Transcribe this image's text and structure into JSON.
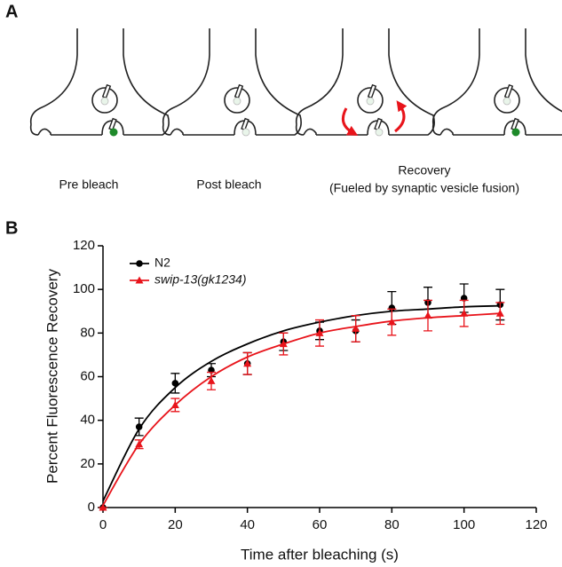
{
  "panel_a": {
    "label": "A",
    "captions": [
      "Pre bleach",
      "Post bleach",
      [
        "Recovery",
        "(Fueled by synaptic vesicle fusion)"
      ]
    ]
  },
  "chart_data": {
    "type": "line",
    "panel_label": "B",
    "xlabel": "Time after bleaching (s)",
    "ylabel": "Percent Fluorescence Recovery",
    "x": [
      0,
      10,
      20,
      30,
      40,
      50,
      60,
      70,
      80,
      90,
      100,
      110
    ],
    "series": [
      {
        "name": "N2",
        "color": "#000000",
        "marker": "circle",
        "values": [
          0,
          37,
          57,
          63,
          66,
          76,
          81,
          81,
          91.5,
          94,
          96,
          93
        ],
        "errors": [
          0,
          4,
          4.5,
          3,
          5,
          4,
          4,
          5,
          7.5,
          7,
          6.5,
          7
        ],
        "fit_values": [
          3,
          36,
          55,
          67,
          75,
          81,
          85,
          88,
          90,
          91,
          92,
          92.5
        ]
      },
      {
        "name": "swip-13(gk1234)",
        "color": "#e8141b",
        "marker": "triangle",
        "italic": true,
        "values": [
          0,
          29,
          47,
          58,
          66,
          75,
          80,
          82,
          85,
          88,
          89,
          89
        ],
        "errors": [
          0,
          2,
          3,
          4,
          5,
          5,
          6,
          6,
          6,
          7,
          6,
          5
        ],
        "fit_values": [
          1,
          29,
          47,
          60,
          69,
          75,
          80,
          83,
          85.5,
          87,
          88,
          89
        ]
      }
    ],
    "xlim": [
      0,
      120
    ],
    "xticks": [
      0,
      20,
      40,
      60,
      80,
      100,
      120
    ],
    "ylim": [
      0,
      120
    ],
    "yticks": [
      0,
      20,
      40,
      60,
      80,
      100,
      120
    ],
    "legend": "upper left"
  }
}
